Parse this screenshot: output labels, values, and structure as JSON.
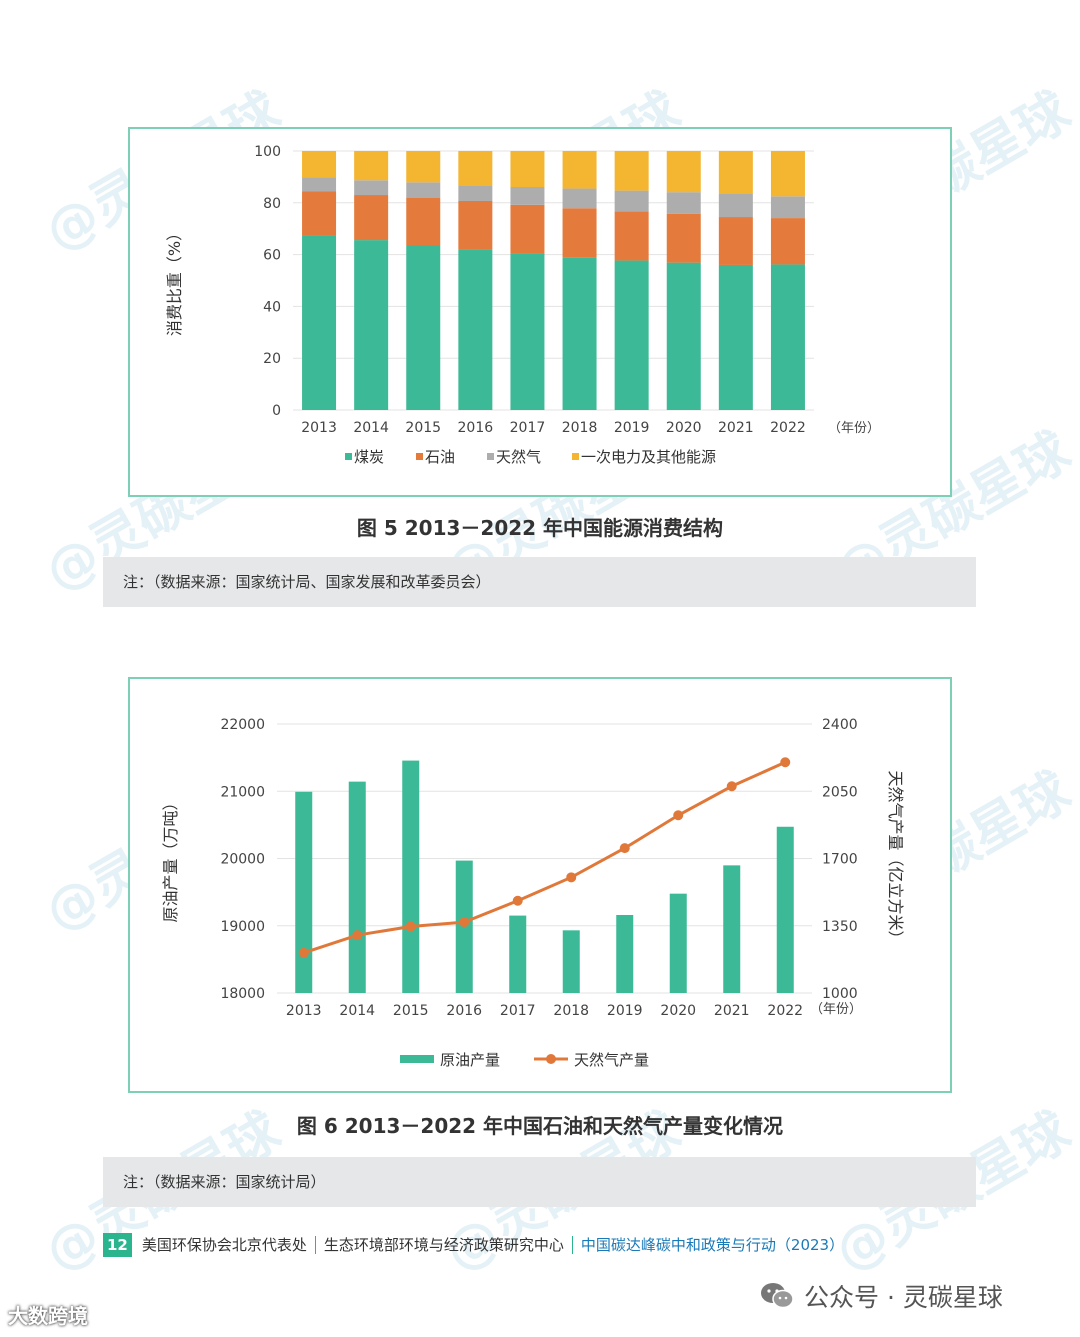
{
  "chart_data": [
    {
      "type": "bar",
      "stacked": true,
      "categories": [
        "2013",
        "2014",
        "2015",
        "2016",
        "2017",
        "2018",
        "2019",
        "2020",
        "2021",
        "2022"
      ],
      "x_unit_label": "（年份）",
      "ylabel": "消费比重（%）",
      "ylim": [
        0,
        100
      ],
      "yticks": [
        0,
        20,
        40,
        60,
        80,
        100
      ],
      "series": [
        {
          "name": "煤炭",
          "color": "#3cb996",
          "values": [
            67.4,
            65.6,
            63.7,
            62.0,
            60.4,
            59.0,
            57.7,
            56.9,
            56.0,
            56.2
          ]
        },
        {
          "name": "石油",
          "color": "#e47b3c",
          "values": [
            17.1,
            17.4,
            18.3,
            18.7,
            18.8,
            18.9,
            19.0,
            18.8,
            18.5,
            17.9
          ]
        },
        {
          "name": "天然气",
          "color": "#adadad",
          "values": [
            5.3,
            5.7,
            5.9,
            6.1,
            6.9,
            7.6,
            8.0,
            8.4,
            8.9,
            8.4
          ]
        },
        {
          "name": "一次电力及其他能源",
          "color": "#f4b531",
          "values": [
            10.2,
            11.3,
            12.1,
            13.2,
            13.9,
            14.5,
            15.3,
            15.9,
            16.6,
            17.5
          ]
        }
      ],
      "legend": "bottom",
      "caption": "图 5   2013－2022 年中国能源消费结构",
      "note": "注：（数据来源：国家统计局、国家发展和改革委员会）"
    },
    {
      "type": "bar+line",
      "categories": [
        "2013",
        "2014",
        "2015",
        "2016",
        "2017",
        "2018",
        "2019",
        "2020",
        "2021",
        "2022"
      ],
      "x_unit_label": "（年份）",
      "ylabel_left": "原油产量（万吨）",
      "ylabel_right": "天然气产量（亿立方米）",
      "ylim_left": [
        18000,
        22000
      ],
      "yticks_left": [
        18000,
        19000,
        20000,
        21000,
        22000
      ],
      "ylim_right": [
        1000,
        2400
      ],
      "yticks_right": [
        1000,
        1350,
        1700,
        2050,
        2400
      ],
      "series": [
        {
          "name": "原油产量",
          "type": "bar",
          "axis": "left",
          "color": "#3cb996",
          "values": [
            20992,
            21143,
            21456,
            19969,
            19151,
            18932,
            19160,
            19477,
            19898,
            20472
          ]
        },
        {
          "name": "天然气产量",
          "type": "line",
          "axis": "right",
          "color": "#e0783a",
          "values": [
            1209,
            1301,
            1346,
            1369,
            1480,
            1602,
            1754,
            1925,
            2076,
            2201
          ]
        }
      ],
      "legend": "bottom",
      "caption": "图 6   2013－2022 年中国石油和天然气产量变化情况",
      "note": "注：（数据来源：国家统计局）"
    }
  ],
  "footer": {
    "page_number": "12",
    "org1": "美国环保协会北京代表处",
    "org2": "生态环境部环境与经济政策研究中心",
    "report": "中国碳达峰碳中和政策与行动（2023）"
  },
  "watermark": "@灵碳星球",
  "wechat_label": "公众号 · 灵碳星球",
  "corner_label": "大数跨境"
}
